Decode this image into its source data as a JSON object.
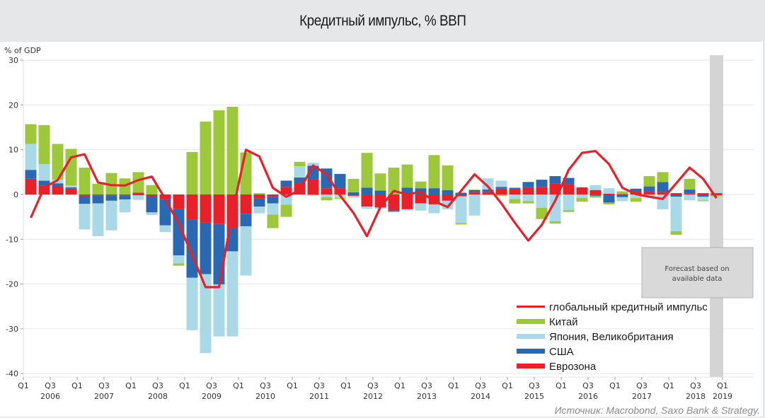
{
  "header": {
    "title": "Кредитный импульс, % ВВП"
  },
  "source": "Источник: Macrobond, Saxo Bank & Strategy.",
  "forecast_note": [
    "Forecast based on",
    "available data"
  ],
  "colors": {
    "global": "#e8202a",
    "china": "#9dc83c",
    "japan_uk": "#a9d8e6",
    "usa": "#2a68b1",
    "eurozone": "#e8202a",
    "forecast_band": "#d4d4d4",
    "grid": "#e6e6e6"
  },
  "chart_data": {
    "type": "bar",
    "stacked": true,
    "title": "Кредитный импульс, % ВВП",
    "ylabel": "% of GDP",
    "xlabel": "",
    "ylim": [
      -40,
      30
    ],
    "yticks": [
      30,
      20,
      10,
      0,
      -10,
      -20,
      -30,
      -40
    ],
    "grid": true,
    "legend_position": "bottom-right",
    "x_tick_labels": [
      {
        "q": "Q1",
        "year": ""
      },
      {
        "q": "Q3",
        "year": "2006"
      },
      {
        "q": "Q1",
        "year": ""
      },
      {
        "q": "Q3",
        "year": "2007"
      },
      {
        "q": "Q1",
        "year": ""
      },
      {
        "q": "Q3",
        "year": "2008"
      },
      {
        "q": "Q1",
        "year": ""
      },
      {
        "q": "Q3",
        "year": "2009"
      },
      {
        "q": "Q1",
        "year": ""
      },
      {
        "q": "Q3",
        "year": "2010"
      },
      {
        "q": "Q1",
        "year": ""
      },
      {
        "q": "Q3",
        "year": "2011"
      },
      {
        "q": "Q1",
        "year": ""
      },
      {
        "q": "Q3",
        "year": "2012"
      },
      {
        "q": "Q1",
        "year": ""
      },
      {
        "q": "Q3",
        "year": "2013"
      },
      {
        "q": "Q1",
        "year": ""
      },
      {
        "q": "Q3",
        "year": "2014"
      },
      {
        "q": "Q1",
        "year": ""
      },
      {
        "q": "Q3",
        "year": "2015"
      },
      {
        "q": "Q1",
        "year": ""
      },
      {
        "q": "Q3",
        "year": "2016"
      },
      {
        "q": "Q1",
        "year": ""
      },
      {
        "q": "Q3",
        "year": "2017"
      },
      {
        "q": "Q1",
        "year": ""
      },
      {
        "q": "Q3",
        "year": "2018"
      },
      {
        "q": "Q1",
        "year": "2019"
      }
    ],
    "x": [
      "2006Q1",
      "2006Q2",
      "2006Q3",
      "2006Q4",
      "2007Q1",
      "2007Q2",
      "2007Q3",
      "2007Q4",
      "2008Q1",
      "2008Q2",
      "2008Q3",
      "2008Q4",
      "2009Q1",
      "2009Q2",
      "2009Q3",
      "2009Q4",
      "2010Q1",
      "2010Q2",
      "2010Q3",
      "2010Q4",
      "2011Q1",
      "2011Q2",
      "2011Q3",
      "2011Q4",
      "2012Q1",
      "2012Q2",
      "2012Q3",
      "2012Q4",
      "2013Q1",
      "2013Q2",
      "2013Q3",
      "2013Q4",
      "2014Q1",
      "2014Q2",
      "2014Q3",
      "2014Q4",
      "2015Q1",
      "2015Q2",
      "2015Q3",
      "2015Q4",
      "2016Q1",
      "2016Q2",
      "2016Q3",
      "2016Q4",
      "2017Q1",
      "2017Q2",
      "2017Q3",
      "2017Q4",
      "2018Q1",
      "2018Q2",
      "2018Q3",
      "2018Q4"
    ],
    "forecast_period": "2018Q4",
    "series": [
      {
        "name": "Еврозона",
        "key": "eurozone",
        "type": "bar",
        "values": [
          3.5,
          2.0,
          1.9,
          1.3,
          -0.3,
          -0.2,
          -0.2,
          -0.2,
          0.4,
          -0.4,
          -1.0,
          -3.3,
          -5.6,
          -6.3,
          -6.6,
          -7.5,
          -4.3,
          -0.9,
          -0.5,
          1.7,
          2.6,
          3.4,
          1.4,
          1.4,
          -0.3,
          -2.7,
          -2.9,
          -3.6,
          -3.3,
          -2.0,
          -2.2,
          -1.4,
          -0.4,
          0.5,
          0.6,
          1.3,
          1.2,
          1.6,
          1.7,
          2.4,
          2.3,
          1.5,
          1.0,
          0.2,
          0.1,
          0.7,
          0.7,
          0.6,
          0.3,
          0.2,
          0.3,
          0.3
        ]
      },
      {
        "name": "США",
        "key": "usa",
        "type": "bar",
        "values": [
          2.0,
          1.1,
          0.6,
          0.3,
          -1.8,
          -1.8,
          -1.2,
          -0.9,
          -0.2,
          -3.6,
          -5.9,
          -10.3,
          -13.0,
          -11.5,
          -13.5,
          -5.2,
          -2.8,
          -1.8,
          -1.5,
          1.4,
          1.2,
          3.0,
          4.4,
          3.2,
          0.5,
          1.5,
          0.9,
          -0.2,
          1.5,
          1.4,
          1.4,
          1.0,
          0.4,
          0.5,
          0.5,
          0.4,
          0.3,
          1.2,
          1.6,
          1.7,
          1.4,
          0.1,
          -0.3,
          -1.8,
          -0.6,
          0.6,
          1.1,
          2.2,
          -0.5,
          0.9,
          -0.5,
          -0.2
        ]
      },
      {
        "name": "Япония, Великобритания",
        "key": "japan_uk",
        "type": "bar",
        "values": [
          5.8,
          3.7,
          0.8,
          0.4,
          -5.7,
          -7.3,
          -6.6,
          -2.9,
          -1.0,
          -0.6,
          -1.5,
          -1.8,
          -11.7,
          -17.6,
          -11.6,
          -19.0,
          -11.0,
          -1.5,
          -2.5,
          -2.3,
          2.5,
          0.7,
          -0.6,
          -0.8,
          -0.4,
          -0.5,
          -0.3,
          -0.2,
          -0.3,
          -1.6,
          -2.0,
          -1.9,
          -6.0,
          -4.7,
          2.5,
          1.4,
          -1.0,
          -1.5,
          -3.0,
          -6.0,
          -3.5,
          -0.8,
          1.1,
          1.2,
          -0.9,
          -0.8,
          -0.6,
          -3.3,
          -7.7,
          -1.3,
          -0.8,
          0.3
        ]
      },
      {
        "name": "Китай",
        "key": "china",
        "type": "bar",
        "values": [
          4.4,
          8.7,
          8.0,
          8.2,
          6.0,
          2.4,
          4.8,
          3.6,
          4.6,
          2.1,
          0.0,
          -0.5,
          9.5,
          16.3,
          18.8,
          19.6,
          9.4,
          0.3,
          -3.0,
          -2.7,
          1.0,
          -0.2,
          -0.7,
          -0.2,
          3.0,
          7.8,
          3.8,
          6.0,
          5.2,
          1.5,
          7.4,
          5.5,
          -0.3,
          0.1,
          -0.1,
          -0.3,
          -1.0,
          -0.5,
          -2.5,
          -0.5,
          -0.4,
          -0.8,
          -0.4,
          -0.4,
          0.6,
          -0.8,
          2.3,
          2.2,
          -0.8,
          2.4,
          -0.2,
          -0.2
        ]
      },
      {
        "name": "глобальный кредитный импульс",
        "key": "global",
        "type": "line",
        "values": [
          -5.2,
          1.6,
          3.2,
          8.3,
          9.0,
          2.7,
          2.1,
          2.0,
          3.2,
          4.0,
          -1.0,
          -6.5,
          -13.5,
          -20.7,
          -20.7,
          -4.0,
          10.0,
          8.5,
          1.5,
          -0.5,
          1.0,
          6.5,
          4.5,
          -0.2,
          -4.1,
          -9.3,
          -2.8,
          0.8,
          0.0,
          0.6,
          -1.5,
          -2.8,
          0.8,
          4.5,
          1.8,
          -2.0,
          -6.3,
          -10.3,
          -6.8,
          -1.4,
          5.5,
          9.3,
          9.7,
          6.8,
          1.5,
          0.1,
          -0.5,
          -1.0,
          2.5,
          6.0,
          3.5,
          -0.8
        ]
      }
    ]
  },
  "legend": [
    {
      "label": "глобальный кредитный импульс",
      "key": "global",
      "kind": "line"
    },
    {
      "label": "Китай",
      "key": "china",
      "kind": "bar"
    },
    {
      "label": "Япония, Великобритания",
      "key": "japan_uk",
      "kind": "bar"
    },
    {
      "label": "США",
      "key": "usa",
      "kind": "bar"
    },
    {
      "label": "Еврозона",
      "key": "eurozone",
      "kind": "bar"
    }
  ]
}
